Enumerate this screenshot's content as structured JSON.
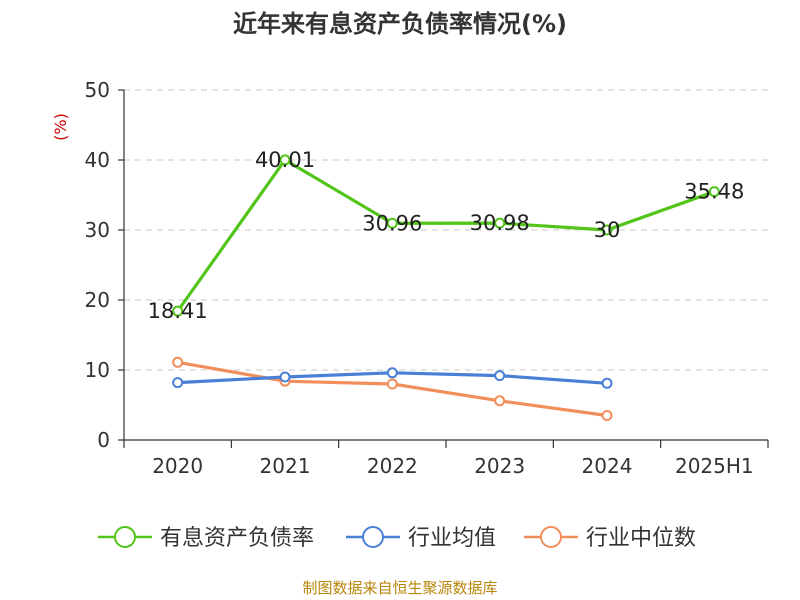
{
  "chart_data": {
    "type": "line",
    "title": "近年来有息资产负债率情况(%)",
    "ylabel": "(%)",
    "xlabel": "",
    "categories": [
      "2020",
      "2021",
      "2022",
      "2023",
      "2024",
      "2025H1"
    ],
    "ylim": [
      0,
      50
    ],
    "yticks": [
      0,
      10,
      20,
      30,
      40,
      50
    ],
    "grid": true,
    "legend_position": "bottom",
    "series": [
      {
        "name": "有息资产负债率",
        "color": "#52c41a",
        "values": [
          18.41,
          40.01,
          30.96,
          30.98,
          30,
          35.48
        ],
        "labels": [
          "18.41",
          "40.01",
          "30.96",
          "30.98",
          "30",
          "35.48"
        ],
        "show_labels": true
      },
      {
        "name": "行业均值",
        "color": "#4a7fd6",
        "values": [
          8.2,
          9.0,
          9.6,
          9.2,
          8.1,
          null
        ],
        "show_labels": false
      },
      {
        "name": "行业中位数",
        "color": "#f28e5b",
        "values": [
          11.1,
          8.4,
          8.0,
          5.6,
          3.5,
          null
        ],
        "show_labels": false
      }
    ]
  },
  "footer": {
    "source": "制图数据来自恒生聚源数据库"
  }
}
